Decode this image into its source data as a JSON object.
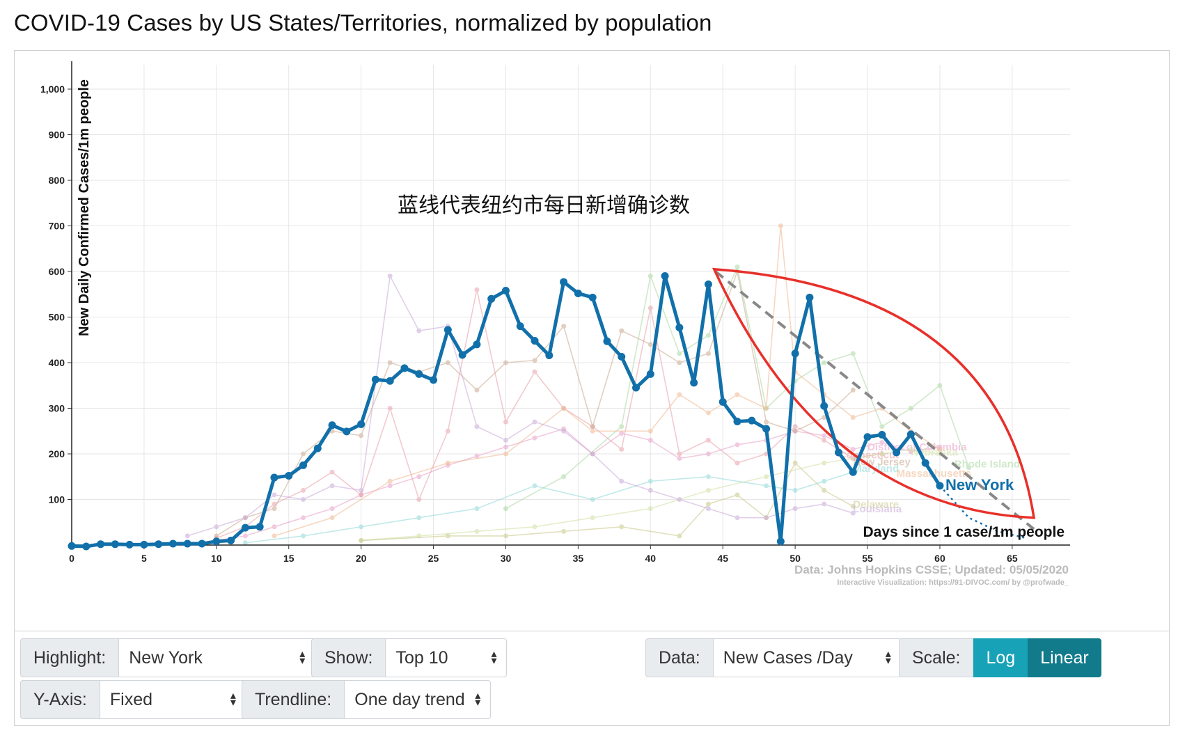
{
  "page": {
    "title": "COVID-19 Cases by US States/Territories, normalized by population"
  },
  "chart_data": {
    "type": "line",
    "ylabel": "New Daily Confirmed Cases/1m people",
    "xlabel": "Days since 1 case/1m people",
    "annotation": "蓝线代表纽约市每日新增确诊数",
    "source_line1": "Data: Johns Hopkins CSSE; Updated: 05/05/2020",
    "source_line2": "Interactive Visualization: https://91-DIVOC.com/ by @profwade_",
    "xlim": [
      0,
      69
    ],
    "ylim": [
      0,
      1000
    ],
    "x_ticks": [
      0,
      5,
      10,
      15,
      20,
      25,
      30,
      35,
      40,
      45,
      50,
      55,
      60,
      65
    ],
    "y_ticks": [
      100,
      200,
      300,
      400,
      500,
      600,
      700,
      800,
      900,
      1000
    ],
    "y_tick_labels": [
      "100",
      "200",
      "300",
      "400",
      "500",
      "600",
      "700",
      "800",
      "900",
      "1,000"
    ],
    "grid": true,
    "highlight_color": "#1170aa",
    "highlight": {
      "name": "New York",
      "x": [
        0,
        1,
        2,
        3,
        4,
        5,
        6,
        7,
        8,
        9,
        10,
        11,
        12,
        13,
        14,
        15,
        16,
        17,
        18,
        19,
        20,
        21,
        22,
        23,
        24,
        25,
        26,
        27,
        28,
        29,
        30,
        31,
        32,
        33,
        34,
        35,
        36,
        37,
        38,
        39,
        40,
        41,
        42,
        43,
        44,
        45,
        46,
        47,
        48,
        49,
        50,
        51,
        52,
        53,
        54,
        55,
        56,
        57,
        58,
        59,
        60
      ],
      "values": [
        -2,
        -3,
        2,
        2,
        1,
        1,
        2,
        3,
        3,
        3,
        8,
        10,
        38,
        40,
        148,
        152,
        175,
        212,
        263,
        249,
        265,
        363,
        360,
        388,
        375,
        362,
        472,
        417,
        440,
        540,
        558,
        480,
        448,
        416,
        577,
        552,
        543,
        447,
        413,
        345,
        375,
        590,
        477,
        356,
        572,
        314,
        271,
        273,
        255,
        8,
        420,
        543,
        305,
        203,
        160,
        237,
        242,
        203,
        243,
        180,
        130
      ]
    },
    "trend_line": {
      "x": [
        44.5,
        66.5
      ],
      "values": [
        600,
        35
      ]
    },
    "projection": {
      "x": [
        60,
        62,
        64,
        66
      ],
      "values": [
        130,
        60,
        30,
        15
      ]
    },
    "background_series": [
      {
        "name": "District of Columbia",
        "color": "#e8a0c8",
        "label_x": 55,
        "label_y": 208,
        "x": [
          10,
          12,
          14,
          16,
          18,
          20,
          22,
          24,
          26,
          28,
          30,
          32,
          34,
          36,
          38,
          40,
          42,
          44,
          46,
          48,
          50,
          52,
          54,
          56,
          58,
          60
        ],
        "values": [
          10,
          20,
          40,
          60,
          80,
          110,
          130,
          150,
          175,
          195,
          215,
          235,
          255,
          200,
          245,
          230,
          190,
          200,
          220,
          230,
          250,
          240,
          210,
          225,
          205,
          215
        ]
      },
      {
        "name": "Connecticut",
        "color": "#e8a0a8",
        "label_x": 53,
        "label_y": 190,
        "x": [
          10,
          12,
          14,
          16,
          18,
          20,
          22,
          24,
          26,
          28,
          30,
          32,
          34,
          36,
          38,
          40,
          42,
          44,
          46,
          48,
          50,
          52,
          54,
          56
        ],
        "values": [
          15,
          40,
          90,
          120,
          160,
          110,
          300,
          100,
          250,
          560,
          270,
          380,
          300,
          260,
          210,
          520,
          200,
          230,
          180,
          200,
          260,
          230,
          190,
          200
        ]
      },
      {
        "name": "Nebraska",
        "color": "#cfe0a0",
        "label_x": 58,
        "label_y": 196,
        "x": [
          20,
          24,
          28,
          32,
          36,
          40,
          44,
          48,
          52,
          56,
          58,
          60
        ],
        "values": [
          10,
          20,
          30,
          40,
          60,
          80,
          120,
          150,
          180,
          200,
          210,
          200
        ]
      },
      {
        "name": "New Jersey",
        "color": "#c9a890",
        "label_x": 54,
        "label_y": 175,
        "x": [
          10,
          12,
          14,
          16,
          18,
          20,
          22,
          24,
          26,
          28,
          30,
          32,
          34,
          36,
          38,
          40,
          42,
          44,
          46,
          48,
          50,
          52,
          54
        ],
        "values": [
          20,
          60,
          80,
          200,
          250,
          240,
          400,
          380,
          400,
          340,
          400,
          405,
          480,
          260,
          470,
          440,
          400,
          420,
          600,
          270,
          250,
          280,
          340
        ]
      },
      {
        "name": "Rhode Island",
        "color": "#a8d8a0",
        "label_x": 61,
        "label_y": 170,
        "x": [
          30,
          34,
          38,
          40,
          42,
          44,
          46,
          48,
          50,
          52,
          54,
          56,
          58,
          60,
          62
        ],
        "values": [
          80,
          150,
          260,
          590,
          420,
          460,
          610,
          300,
          360,
          400,
          420,
          260,
          300,
          350,
          170
        ]
      },
      {
        "name": "Maryland",
        "color": "#90d8d8",
        "label_x": 54,
        "label_y": 160,
        "x": [
          12,
          16,
          20,
          24,
          28,
          32,
          36,
          40,
          44,
          48,
          50,
          52,
          54
        ],
        "values": [
          5,
          20,
          40,
          60,
          80,
          130,
          100,
          140,
          150,
          130,
          120,
          140,
          160
        ]
      },
      {
        "name": "Massachusetts",
        "color": "#f0b890",
        "label_x": 57,
        "label_y": 150,
        "x": [
          14,
          18,
          22,
          26,
          30,
          34,
          36,
          40,
          42,
          44,
          46,
          48,
          49,
          50,
          52,
          54,
          56,
          58,
          60
        ],
        "values": [
          20,
          60,
          140,
          180,
          200,
          300,
          250,
          250,
          330,
          290,
          330,
          300,
          700,
          380,
          330,
          280,
          300,
          250,
          210
        ]
      },
      {
        "name": "Delaware",
        "color": "#c8c888",
        "label_x": 54,
        "label_y": 82,
        "x": [
          20,
          26,
          30,
          34,
          38,
          42,
          44,
          46,
          48,
          50,
          52,
          54
        ],
        "values": [
          10,
          20,
          20,
          30,
          40,
          20,
          90,
          110,
          60,
          180,
          120,
          85
        ]
      },
      {
        "name": "Louisiana",
        "color": "#c8a8d8",
        "label_x": 54,
        "label_y": 72,
        "x": [
          8,
          10,
          12,
          14,
          16,
          18,
          20,
          22,
          24,
          26,
          28,
          30,
          32,
          34,
          36,
          38,
          40,
          42,
          44,
          46,
          48,
          50,
          52,
          54
        ],
        "values": [
          20,
          40,
          60,
          110,
          100,
          130,
          120,
          590,
          470,
          480,
          260,
          230,
          270,
          250,
          200,
          140,
          120,
          100,
          80,
          60,
          60,
          80,
          90,
          70
        ]
      }
    ]
  },
  "controls": {
    "highlight_label": "Highlight:",
    "highlight_value": "New York",
    "show_label": "Show:",
    "show_value": "Top 10",
    "data_label": "Data:",
    "data_value": "New Cases /Day",
    "scale_label": "Scale:",
    "scale_log": "Log",
    "scale_linear": "Linear",
    "yaxis_label": "Y-Axis:",
    "yaxis_value": "Fixed",
    "trendline_label": "Trendline:",
    "trendline_value": "One day trend"
  }
}
